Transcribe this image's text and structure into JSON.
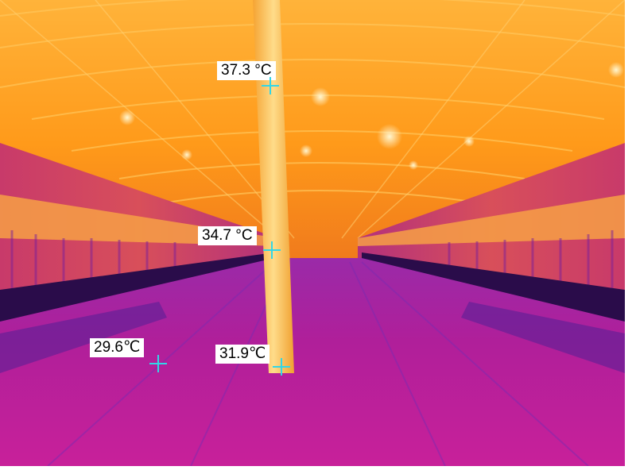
{
  "image": {
    "description_icon": "thermal-camera-view",
    "palette": {
      "hot": "#ffe6a0",
      "warm": "#ff9a1a",
      "mid": "#e5621b",
      "cool": "#c1188f",
      "cold": "#8b1fa9",
      "coldest": "#4b1a8a",
      "marker": "#33d6e6"
    }
  },
  "measurements": [
    {
      "label": "37.3 °C"
    },
    {
      "label": "34.7 °C"
    },
    {
      "label": "29.6℃"
    },
    {
      "label": "31.9℃"
    }
  ]
}
